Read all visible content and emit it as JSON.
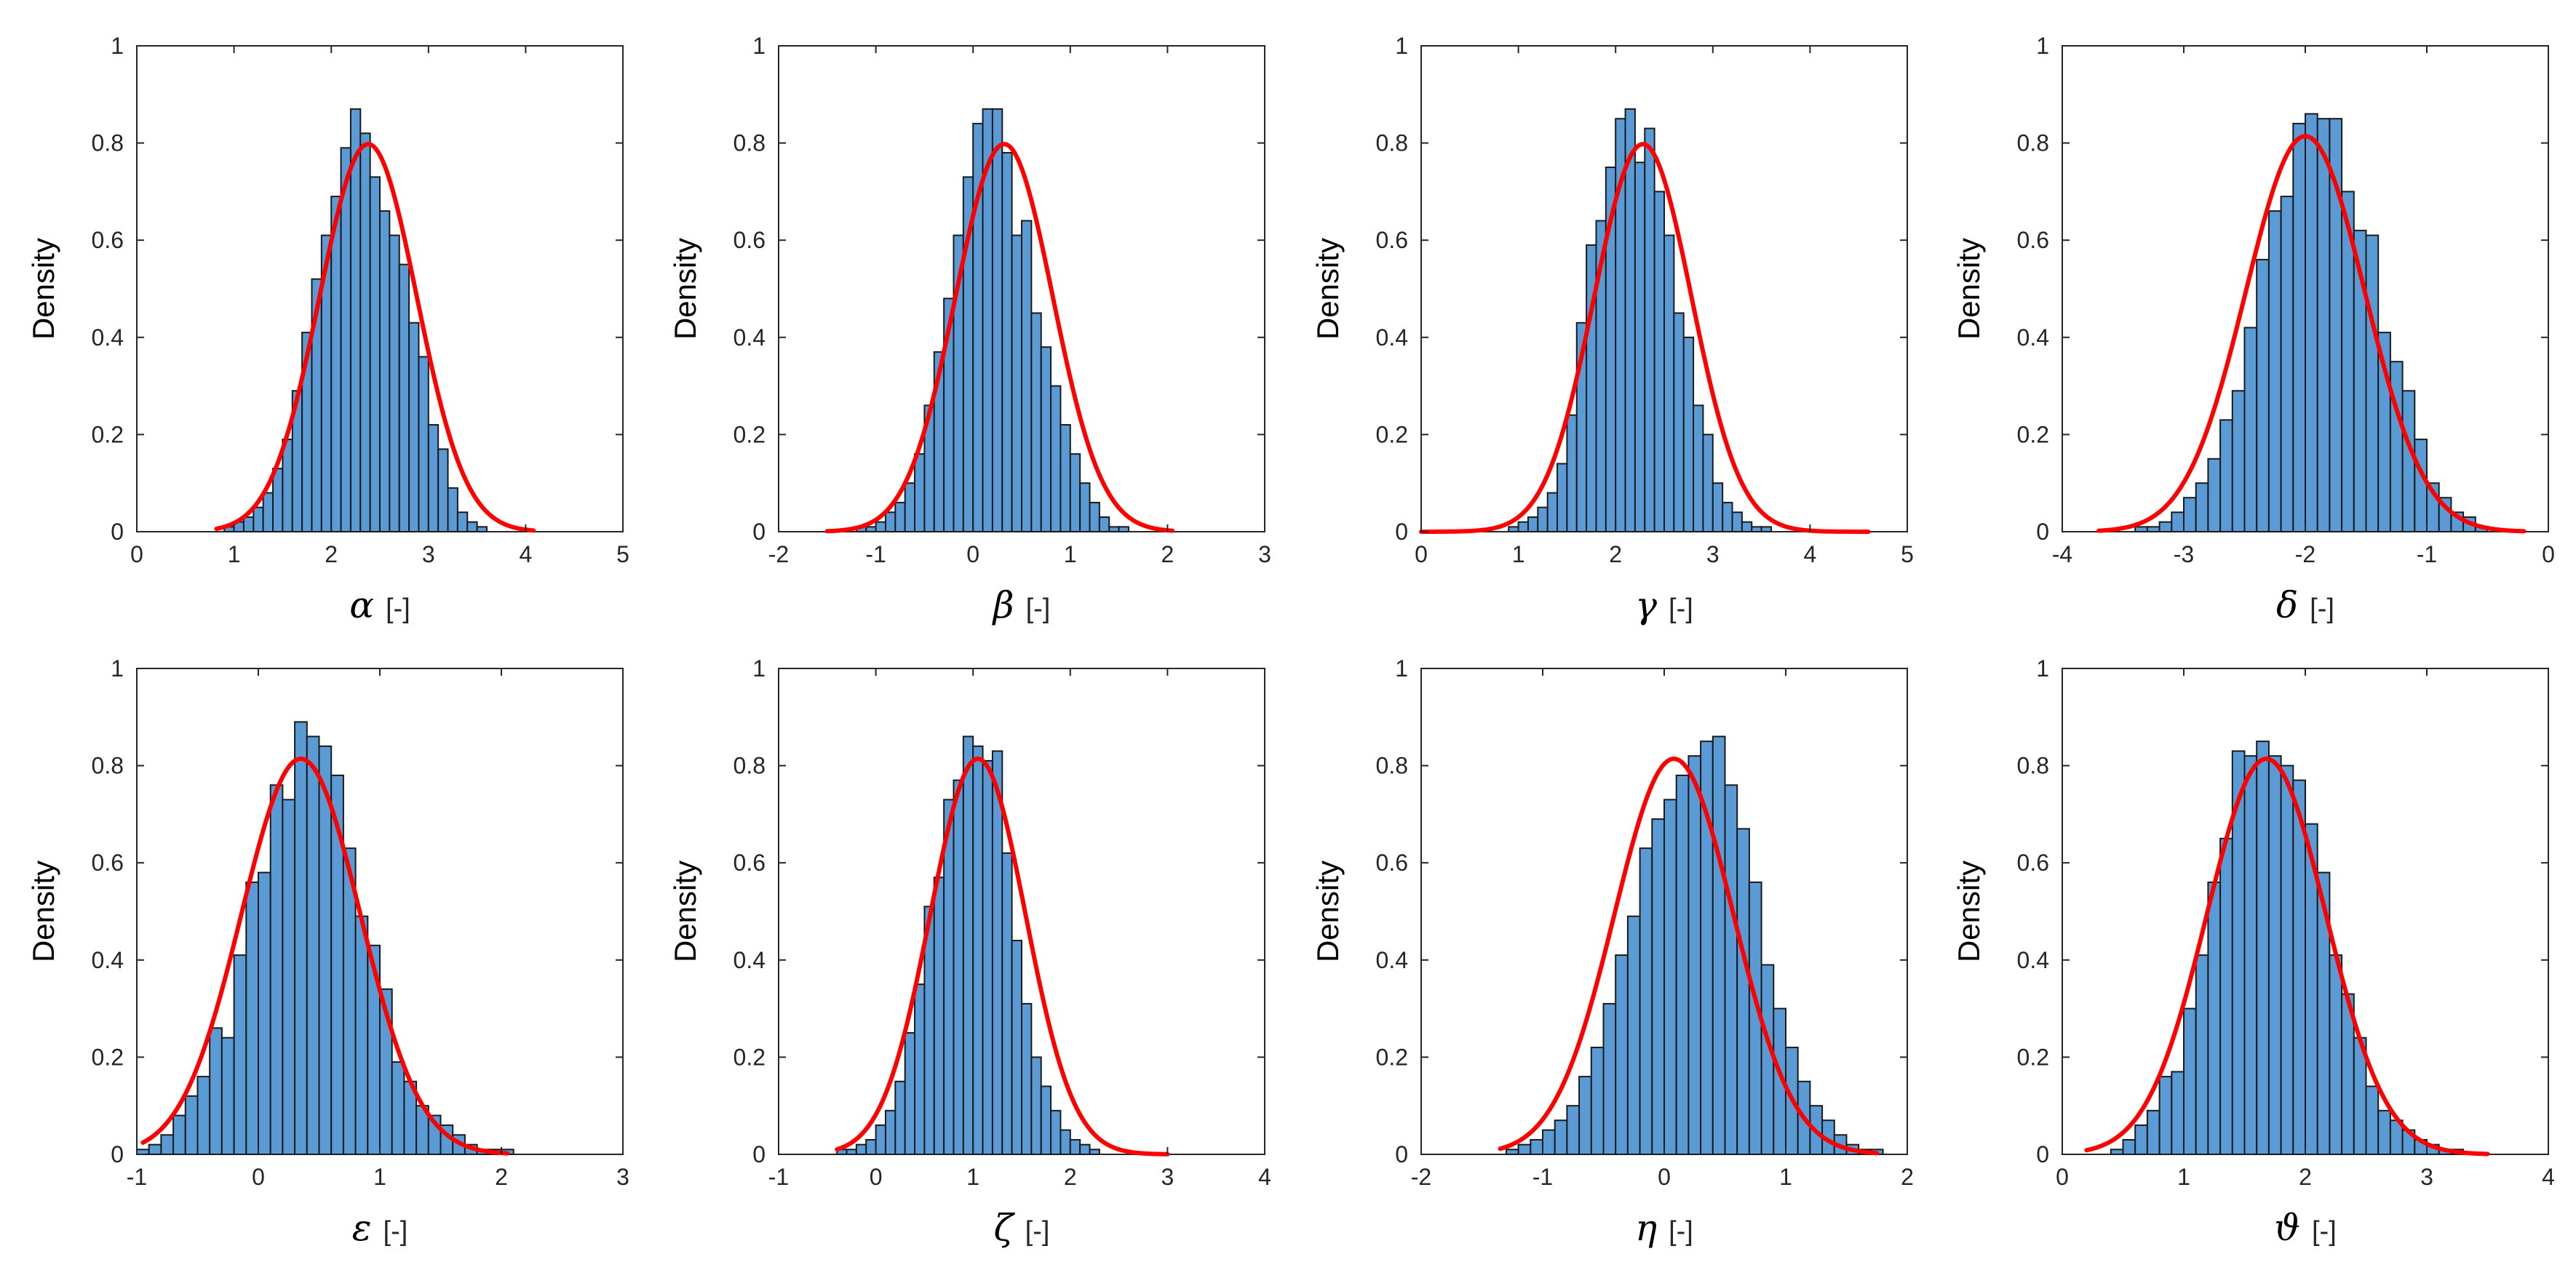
{
  "colors": {
    "bar_fill": "#5b9bd5",
    "bar_edge": "#1a1a1a",
    "curve": "#ff0000",
    "axis": "#262626",
    "background": "#ffffff"
  },
  "chart_data": [
    {
      "type": "bar",
      "title": "",
      "symbol": "α",
      "xunit": "[-]",
      "xlabel": "α [-]",
      "ylabel": "Density",
      "xlim": [
        0,
        5
      ],
      "ylim": [
        0,
        1
      ],
      "xticks": [
        0,
        1,
        2,
        3,
        4,
        5
      ],
      "yticks": [
        0,
        0.2,
        0.4,
        0.6,
        0.8,
        1
      ],
      "xtick_labels": [
        "0",
        "1",
        "2",
        "3",
        "4",
        "5"
      ],
      "ytick_labels": [
        "0",
        "0.2",
        "0.4",
        "0.6",
        "0.8",
        "1"
      ],
      "bin_start": 0.8,
      "bin_width": 0.1,
      "values": [
        0.0,
        0.01,
        0.02,
        0.03,
        0.05,
        0.08,
        0.13,
        0.19,
        0.29,
        0.41,
        0.52,
        0.61,
        0.69,
        0.79,
        0.87,
        0.82,
        0.73,
        0.66,
        0.61,
        0.55,
        0.43,
        0.36,
        0.22,
        0.17,
        0.09,
        0.04,
        0.02,
        0.01,
        0.0,
        0.0,
        0.0,
        0.0
      ],
      "curve": {
        "mean": 2.38,
        "sd": 0.5,
        "x_range": [
          0.82,
          4.08
        ]
      }
    },
    {
      "type": "bar",
      "title": "",
      "symbol": "β",
      "xunit": "[-]",
      "xlabel": "β [-]",
      "ylabel": "Density",
      "xlim": [
        -2,
        3
      ],
      "ylim": [
        0,
        1
      ],
      "xticks": [
        -2,
        -1,
        0,
        1,
        2,
        3
      ],
      "yticks": [
        0,
        0.2,
        0.4,
        0.6,
        0.8,
        1
      ],
      "xtick_labels": [
        "-2",
        "-1",
        "0",
        "1",
        "2",
        "3"
      ],
      "ytick_labels": [
        "0",
        "0.2",
        "0.4",
        "0.6",
        "0.8",
        "1"
      ],
      "bin_start": -1.3,
      "bin_width": 0.1,
      "values": [
        0.0,
        0.01,
        0.01,
        0.02,
        0.04,
        0.06,
        0.1,
        0.16,
        0.26,
        0.37,
        0.48,
        0.61,
        0.73,
        0.84,
        0.87,
        0.87,
        0.78,
        0.61,
        0.64,
        0.45,
        0.38,
        0.3,
        0.22,
        0.16,
        0.1,
        0.06,
        0.03,
        0.01,
        0.01,
        0.0,
        0.0,
        0.0,
        0.0,
        0.0
      ],
      "curve": {
        "mean": 0.32,
        "sd": 0.5,
        "x_range": [
          -1.5,
          2.05
        ]
      }
    },
    {
      "type": "bar",
      "title": "",
      "symbol": "γ",
      "xunit": "[-]",
      "xlabel": "γ [-]",
      "ylabel": "Density",
      "xlim": [
        0,
        5
      ],
      "ylim": [
        0,
        1
      ],
      "xticks": [
        0,
        1,
        2,
        3,
        4,
        5
      ],
      "yticks": [
        0,
        0.2,
        0.4,
        0.6,
        0.8,
        1
      ],
      "xtick_labels": [
        "0",
        "1",
        "2",
        "3",
        "4",
        "5"
      ],
      "ytick_labels": [
        "0",
        "0.2",
        "0.4",
        "0.6",
        "0.8",
        "1"
      ],
      "bin_start": 0.9,
      "bin_width": 0.1,
      "values": [
        0.01,
        0.02,
        0.03,
        0.05,
        0.08,
        0.14,
        0.24,
        0.43,
        0.59,
        0.64,
        0.75,
        0.85,
        0.87,
        0.76,
        0.83,
        0.7,
        0.61,
        0.45,
        0.4,
        0.26,
        0.2,
        0.1,
        0.06,
        0.04,
        0.02,
        0.01,
        0.01,
        0.0,
        0.0,
        0.0,
        0.0,
        0.0
      ],
      "curve": {
        "mean": 2.28,
        "sd": 0.5,
        "x_range": [
          0.0,
          4.6
        ]
      }
    },
    {
      "type": "bar",
      "title": "",
      "symbol": "δ",
      "xunit": "[-]",
      "xlabel": "δ [-]",
      "ylabel": "Density",
      "xlim": [
        -4,
        0
      ],
      "ylim": [
        0,
        1
      ],
      "xticks": [
        -4,
        -3,
        -2,
        -1,
        0
      ],
      "yticks": [
        0,
        0.2,
        0.4,
        0.6,
        0.8,
        1
      ],
      "xtick_labels": [
        "-4",
        "-3",
        "-2",
        "-1",
        "0"
      ],
      "ytick_labels": [
        "0",
        "0.2",
        "0.4",
        "0.6",
        "0.8",
        "1"
      ],
      "bin_start": -3.4,
      "bin_width": 0.1,
      "values": [
        0.01,
        0.01,
        0.02,
        0.04,
        0.07,
        0.1,
        0.15,
        0.23,
        0.29,
        0.42,
        0.56,
        0.66,
        0.69,
        0.84,
        0.86,
        0.85,
        0.85,
        0.7,
        0.62,
        0.61,
        0.41,
        0.35,
        0.29,
        0.19,
        0.1,
        0.07,
        0.04,
        0.03,
        0.01,
        0.0,
        0.0
      ],
      "curve": {
        "mean": -2.0,
        "sd": 0.49,
        "x_range": [
          -3.7,
          -0.2
        ]
      }
    },
    {
      "type": "bar",
      "title": "",
      "symbol": "ε",
      "xunit": "[-]",
      "xlabel": "ε [-]",
      "ylabel": "Density",
      "xlim": [
        -1,
        3
      ],
      "ylim": [
        0,
        1
      ],
      "xticks": [
        -1,
        0,
        1,
        2,
        3
      ],
      "yticks": [
        0,
        0.2,
        0.4,
        0.6,
        0.8,
        1
      ],
      "xtick_labels": [
        "-1",
        "0",
        "1",
        "2",
        "3"
      ],
      "ytick_labels": [
        "0",
        "0.2",
        "0.4",
        "0.6",
        "0.8",
        "1"
      ],
      "bin_start": -1.0,
      "bin_width": 0.1,
      "values": [
        0.01,
        0.02,
        0.04,
        0.08,
        0.12,
        0.16,
        0.26,
        0.24,
        0.41,
        0.56,
        0.58,
        0.76,
        0.73,
        0.89,
        0.86,
        0.84,
        0.78,
        0.63,
        0.49,
        0.43,
        0.34,
        0.19,
        0.15,
        0.1,
        0.08,
        0.06,
        0.04,
        0.02,
        0.01,
        0.01,
        0.01,
        0.0
      ],
      "curve": {
        "mean": 0.35,
        "sd": 0.49,
        "x_range": [
          -0.95,
          2.05
        ]
      }
    },
    {
      "type": "bar",
      "title": "",
      "symbol": "ζ",
      "xunit": "[-]",
      "xlabel": "ζ [-]",
      "ylabel": "Density",
      "xlim": [
        -1,
        4
      ],
      "ylim": [
        0,
        1
      ],
      "xticks": [
        -1,
        0,
        1,
        2,
        3,
        4
      ],
      "yticks": [
        0,
        0.2,
        0.4,
        0.6,
        0.8,
        1
      ],
      "xtick_labels": [
        "-1",
        "0",
        "1",
        "2",
        "3",
        "4"
      ],
      "ytick_labels": [
        "0",
        "0.2",
        "0.4",
        "0.6",
        "0.8",
        "1"
      ],
      "bin_start": -0.5,
      "bin_width": 0.1,
      "values": [
        0.0,
        0.01,
        0.01,
        0.02,
        0.03,
        0.06,
        0.09,
        0.15,
        0.25,
        0.35,
        0.51,
        0.57,
        0.73,
        0.77,
        0.86,
        0.84,
        0.81,
        0.83,
        0.62,
        0.44,
        0.31,
        0.2,
        0.14,
        0.09,
        0.05,
        0.03,
        0.02,
        0.01,
        0.0,
        0.0,
        0.0,
        0.0,
        0.0,
        0.0
      ],
      "curve": {
        "mean": 1.05,
        "sd": 0.49,
        "x_range": [
          -0.4,
          3.0
        ]
      }
    },
    {
      "type": "bar",
      "title": "",
      "symbol": "η",
      "xunit": "[-]",
      "xlabel": "η [-]",
      "ylabel": "Density",
      "xlim": [
        -2,
        2
      ],
      "ylim": [
        0,
        1
      ],
      "xticks": [
        -2,
        -1,
        0,
        1,
        2
      ],
      "yticks": [
        0,
        0.2,
        0.4,
        0.6,
        0.8,
        1
      ],
      "xtick_labels": [
        "-2",
        "-1",
        "0",
        "1",
        "2"
      ],
      "ytick_labels": [
        "0",
        "0.2",
        "0.4",
        "0.6",
        "0.8",
        "1"
      ],
      "bin_start": -1.3,
      "bin_width": 0.1,
      "values": [
        0.01,
        0.02,
        0.03,
        0.05,
        0.07,
        0.1,
        0.16,
        0.22,
        0.31,
        0.41,
        0.49,
        0.63,
        0.69,
        0.73,
        0.78,
        0.82,
        0.85,
        0.86,
        0.76,
        0.67,
        0.56,
        0.39,
        0.3,
        0.22,
        0.15,
        0.1,
        0.07,
        0.04,
        0.02,
        0.01,
        0.01,
        0.0
      ],
      "curve": {
        "mean": 0.08,
        "sd": 0.49,
        "x_range": [
          -1.35,
          1.75
        ]
      }
    },
    {
      "type": "bar",
      "title": "",
      "symbol": "ϑ",
      "xunit": "[-]",
      "xlabel": "ϑ [-]",
      "ylabel": "Density",
      "xlim": [
        0,
        4
      ],
      "ylim": [
        0,
        1
      ],
      "xticks": [
        0,
        1,
        2,
        3,
        4
      ],
      "yticks": [
        0,
        0.2,
        0.4,
        0.6,
        0.8,
        1
      ],
      "xtick_labels": [
        "0",
        "1",
        "2",
        "3",
        "4"
      ],
      "ytick_labels": [
        "0",
        "0.2",
        "0.4",
        "0.6",
        "0.8",
        "1"
      ],
      "bin_start": 0.3,
      "bin_width": 0.1,
      "values": [
        0.0,
        0.01,
        0.03,
        0.06,
        0.09,
        0.16,
        0.17,
        0.3,
        0.41,
        0.56,
        0.65,
        0.83,
        0.82,
        0.85,
        0.82,
        0.8,
        0.77,
        0.68,
        0.58,
        0.41,
        0.33,
        0.24,
        0.14,
        0.09,
        0.07,
        0.05,
        0.03,
        0.02,
        0.01,
        0.01,
        0.0,
        0.0,
        0.0,
        0.0,
        0.0
      ],
      "curve": {
        "mean": 1.68,
        "sd": 0.49,
        "x_range": [
          0.2,
          3.5
        ]
      }
    }
  ]
}
